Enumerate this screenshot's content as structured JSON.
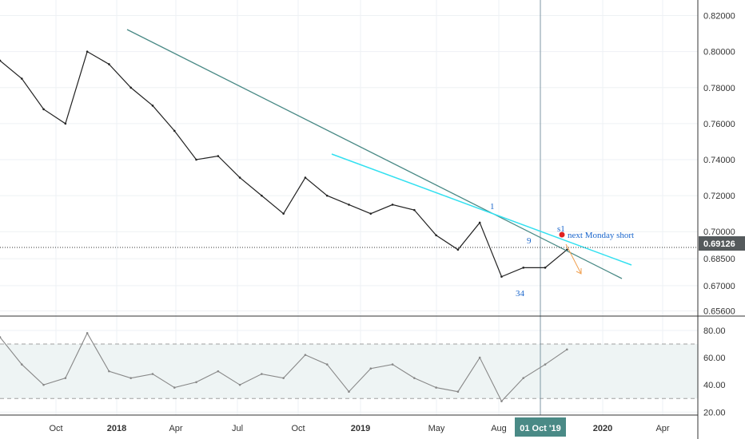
{
  "colors": {
    "price": "#222222",
    "long_trendline": "#4a8a86",
    "short_trendline": "#33e0f0",
    "arrow": "#f0a050",
    "signal_dot": "#e02020",
    "annotation": "#1a66cc",
    "crosshair": "#7f97a4",
    "rsi_line": "#888888",
    "rsi_band": "#eef4f4",
    "grid": "#eef1f4",
    "badge_price": "#555a5c",
    "badge_date": "#4a8a86"
  },
  "chart_data": [
    {
      "type": "line",
      "panel": "price",
      "ylim": [
        0.654,
        0.826
      ],
      "y_ticks": [
        {
          "value": 0.82,
          "label": "0.82000"
        },
        {
          "value": 0.8,
          "label": "0.80000"
        },
        {
          "value": 0.78,
          "label": "0.78000"
        },
        {
          "value": 0.76,
          "label": "0.76000"
        },
        {
          "value": 0.74,
          "label": "0.74000"
        },
        {
          "value": 0.72,
          "label": "0.72000"
        },
        {
          "value": 0.7,
          "label": "0.70000"
        },
        {
          "value": 0.685,
          "label": "0.68500"
        },
        {
          "value": 0.67,
          "label": "0.67000"
        },
        {
          "value": 0.656,
          "label": "0.65600"
        }
      ],
      "last_price": {
        "value": 0.69126,
        "label": "0.69126"
      },
      "x_ticks": [
        "Oct",
        "2018",
        "Apr",
        "Jul",
        "Oct",
        "2019",
        "May",
        "Aug",
        "2020",
        "Apr"
      ],
      "crosshair_date": "01 Oct '19",
      "series": [
        {
          "x": [
            "2017-09",
            "2017-10",
            "2017-11",
            "2017-12",
            "2018-01",
            "2018-02",
            "2018-03",
            "2018-04",
            "2018-05",
            "2018-06",
            "2018-07",
            "2018-08",
            "2018-09",
            "2018-10",
            "2018-11",
            "2018-12",
            "2019-01",
            "2019-02",
            "2019-03",
            "2019-04",
            "2019-05",
            "2019-06",
            "2019-07",
            "2019-08",
            "2019-09",
            "2019-10",
            "2019-11"
          ],
          "values": [
            0.795,
            0.785,
            0.768,
            0.76,
            0.8,
            0.793,
            0.78,
            0.77,
            0.756,
            0.74,
            0.742,
            0.73,
            0.72,
            0.71,
            0.73,
            0.72,
            0.715,
            0.71,
            0.715,
            0.712,
            0.698,
            0.69,
            0.705,
            0.675,
            0.68,
            0.68,
            0.69
          ]
        }
      ],
      "annotations": [
        {
          "text": "1",
          "x": "2019-07",
          "y": 0.709
        },
        {
          "text": "9",
          "x": "2019-08",
          "y": 0.692
        },
        {
          "text": "34",
          "x": "2019-08",
          "y": 0.665
        },
        {
          "text": "s1",
          "x": "2019-10",
          "y": 0.699
        },
        {
          "text": "next Monday  short",
          "x": "2019-10",
          "y": 0.694
        }
      ]
    },
    {
      "type": "line",
      "panel": "rsi",
      "ylim": [
        19,
        87
      ],
      "y_ticks": [
        {
          "value": 80,
          "label": "80.00"
        },
        {
          "value": 60,
          "label": "60.00"
        },
        {
          "value": 40,
          "label": "40.00"
        },
        {
          "value": 20,
          "label": "20.00"
        }
      ],
      "levels": [
        70,
        30
      ],
      "series": [
        {
          "x": [
            "2017-09",
            "2017-10",
            "2017-11",
            "2017-12",
            "2018-01",
            "2018-02",
            "2018-03",
            "2018-04",
            "2018-05",
            "2018-06",
            "2018-07",
            "2018-08",
            "2018-09",
            "2018-10",
            "2018-11",
            "2018-12",
            "2019-01",
            "2019-02",
            "2019-03",
            "2019-04",
            "2019-05",
            "2019-06",
            "2019-07",
            "2019-08",
            "2019-09",
            "2019-10",
            "2019-11"
          ],
          "values": [
            75,
            55,
            40,
            45,
            78,
            50,
            45,
            48,
            38,
            42,
            50,
            40,
            48,
            45,
            62,
            55,
            35,
            52,
            55,
            45,
            38,
            35,
            60,
            28,
            45,
            55,
            66
          ]
        }
      ]
    }
  ]
}
